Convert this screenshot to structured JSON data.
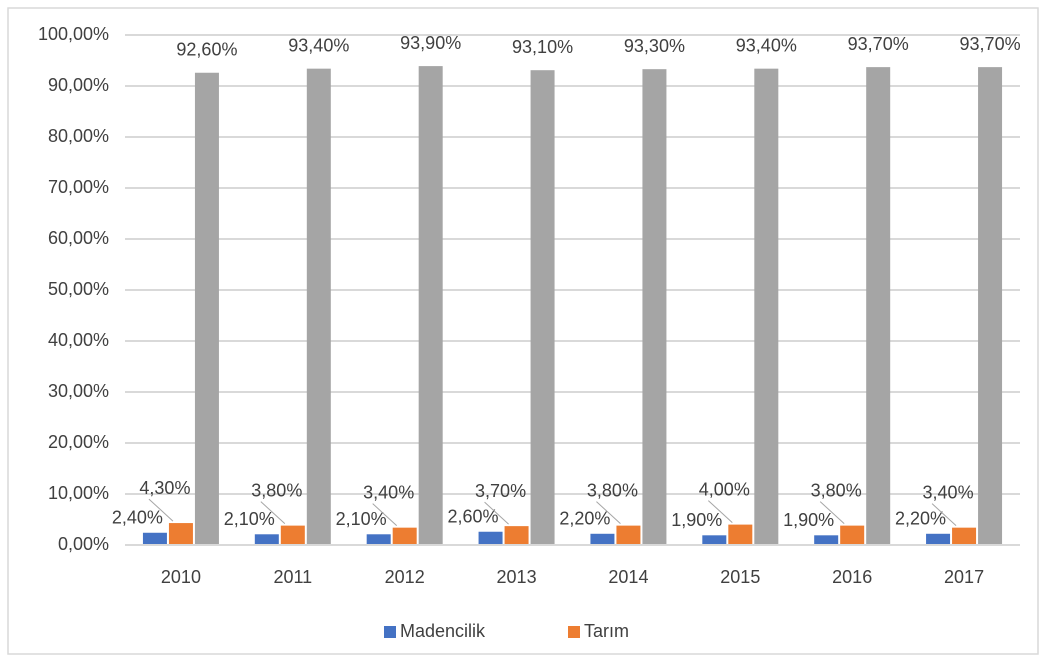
{
  "chart_data": {
    "type": "bar",
    "categories": [
      "2010",
      "2011",
      "2012",
      "2013",
      "2014",
      "2015",
      "2016",
      "2017"
    ],
    "series": [
      {
        "name": "Madencilik",
        "color": "#4472c4",
        "values": [
          2.4,
          2.1,
          2.1,
          2.6,
          2.2,
          1.9,
          1.9,
          2.2
        ],
        "value_labels": [
          "2,40%",
          "2,10%",
          "2,10%",
          "2,60%",
          "2,20%",
          "1,90%",
          "1,90%",
          "2,20%"
        ]
      },
      {
        "name": "Tarım",
        "color": "#ed7d31",
        "values": [
          4.3,
          3.8,
          3.4,
          3.7,
          3.8,
          4.0,
          3.8,
          3.4
        ],
        "value_labels": [
          "4,30%",
          "3,80%",
          "3,40%",
          "3,70%",
          "3,80%",
          "4,00%",
          "3,80%",
          "3,40%"
        ]
      },
      {
        "color": "#a5a5a5",
        "values": [
          92.6,
          93.4,
          93.9,
          93.1,
          93.3,
          93.4,
          93.7,
          93.7
        ],
        "value_labels": [
          "92,60%",
          "93,40%",
          "93,90%",
          "93,10%",
          "93,30%",
          "93,40%",
          "93,70%",
          "93,70%"
        ]
      }
    ],
    "ylim": [
      0,
      100
    ],
    "yticks": [
      {
        "value": 0,
        "label": "0,00%"
      },
      {
        "value": 10,
        "label": "10,00%"
      },
      {
        "value": 20,
        "label": "20,00%"
      },
      {
        "value": 30,
        "label": "30,00%"
      },
      {
        "value": 40,
        "label": "40,00%"
      },
      {
        "value": 50,
        "label": "50,00%"
      },
      {
        "value": 60,
        "label": "60,00%"
      },
      {
        "value": 70,
        "label": "70,00%"
      },
      {
        "value": 80,
        "label": "80,00%"
      },
      {
        "value": 90,
        "label": "90,00%"
      },
      {
        "value": 100,
        "label": "100,00%"
      }
    ],
    "grid": true,
    "legend": "bottom"
  }
}
